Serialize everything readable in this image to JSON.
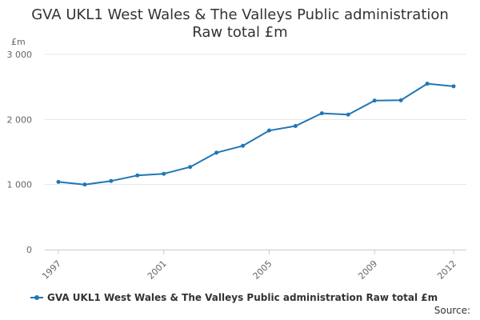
{
  "chart_data": {
    "type": "line",
    "title": "GVA UKL1 West Wales & The Valleys Public administration",
    "subtitle": "Raw total £m",
    "ylabel": "£m",
    "xlabel": "",
    "ylim": [
      0,
      3000
    ],
    "y_ticks": [
      0,
      1000,
      2000,
      3000
    ],
    "y_tick_labels": [
      "0",
      "1 000",
      "2 000",
      "3 000"
    ],
    "x_tick_labels": [
      "1997",
      "2001",
      "2005",
      "2009",
      "2012"
    ],
    "x_tick_years": [
      1997,
      2001,
      2005,
      2009,
      2012
    ],
    "x": [
      1997,
      1998,
      1999,
      2000,
      2001,
      2002,
      2003,
      2004,
      2005,
      2006,
      2007,
      2008,
      2009,
      2010,
      2011,
      2012
    ],
    "series": [
      {
        "name": "GVA UKL1 West Wales & The Valleys Public administration Raw total £m",
        "color": "#1f77b4",
        "values": [
          1040,
          1000,
          1055,
          1140,
          1165,
          1270,
          1490,
          1595,
          1830,
          1900,
          2095,
          2075,
          2290,
          2295,
          2550,
          2510
        ]
      }
    ],
    "legend_position": "bottom-left",
    "grid": true,
    "source_label": "Source:"
  }
}
